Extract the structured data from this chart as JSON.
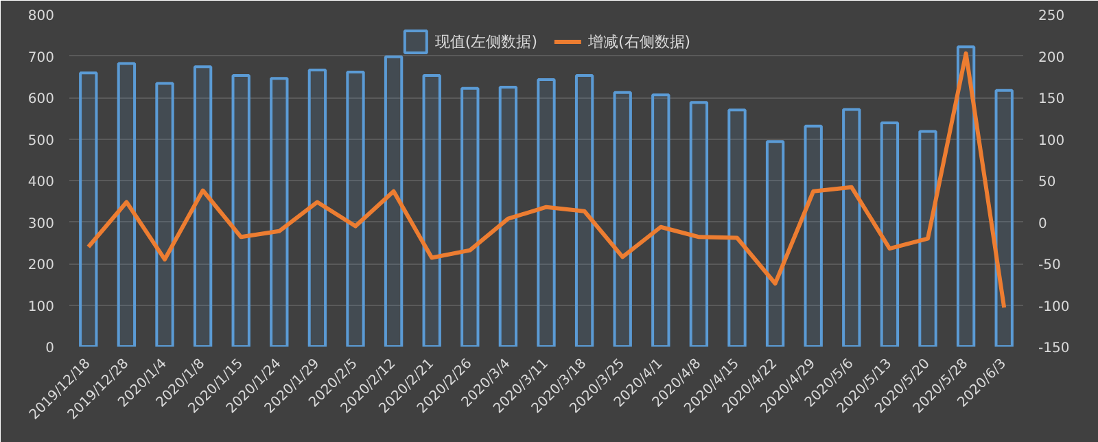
{
  "chart_data": {
    "type": "bar",
    "categories": [
      "2019/12/18",
      "2019/12/28",
      "2020/1/4",
      "2020/1/8",
      "2020/1/15",
      "2020/1/24",
      "2020/1/29",
      "2020/2/5",
      "2020/2/12",
      "2020/2/21",
      "2020/2/26",
      "2020/3/4",
      "2020/3/11",
      "2020/3/18",
      "2020/3/25",
      "2020/4/1",
      "2020/4/8",
      "2020/4/15",
      "2020/4/22",
      "2020/4/29",
      "2020/5/6",
      "2020/5/13",
      "2020/5/20",
      "2020/5/28",
      "2020/6/3"
    ],
    "series": [
      {
        "name": "现值(左侧数据)",
        "color": "#5b9bd5",
        "values": [
          659,
          682,
          634,
          674,
          653,
          646,
          666,
          661,
          698,
          653,
          622,
          625,
          643,
          653,
          612,
          606,
          588,
          570,
          494,
          531,
          571,
          539,
          518,
          722,
          617
        ]
      },
      {
        "name": "增减(右侧数据)",
        "type": "line",
        "axis": "y2",
        "color": "#ed7d31",
        "values": [
          -30,
          24,
          -45,
          38,
          -18,
          -11,
          24,
          -5,
          37,
          -43,
          -34,
          4,
          18,
          13,
          -42,
          -6,
          -18,
          -19,
          -74,
          37,
          42,
          -32,
          -20,
          203,
          -103
        ]
      }
    ],
    "ylim": [
      0,
      800
    ],
    "yticks": [
      0,
      100,
      200,
      300,
      400,
      500,
      600,
      700,
      800
    ],
    "y2lim": [
      -150,
      250
    ],
    "y2ticks": [
      -150,
      -100,
      -50,
      0,
      50,
      100,
      150,
      200,
      250
    ],
    "grid": "y",
    "legend": "top",
    "marker": "none",
    "line_style": "solid"
  }
}
